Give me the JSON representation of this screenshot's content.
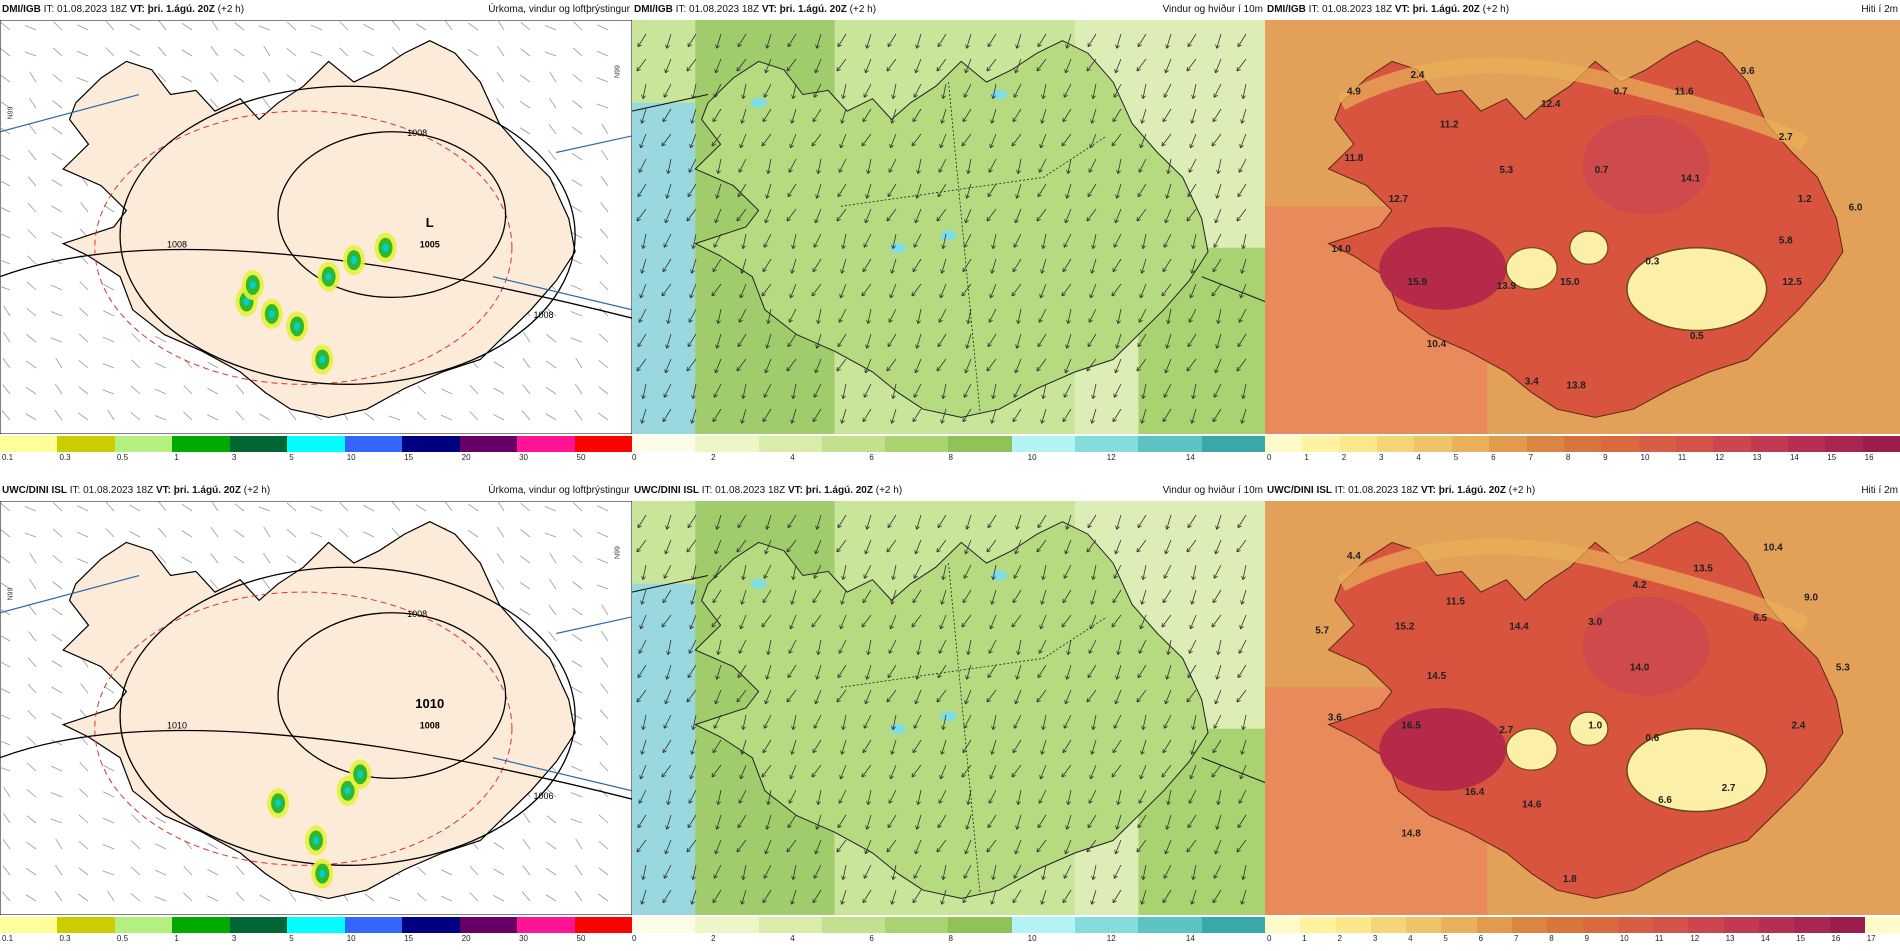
{
  "run_info": {
    "it_label": "IT: 01.08.2023 18Z",
    "vt_prefix": "VT:",
    "vt_value": "þri. 1.ágú. 20Z",
    "lead": "(+2 h)"
  },
  "rows": [
    {
      "model": "DMI/IGB",
      "panels": [
        {
          "title": "Úrkoma, vindur og loftþrýstingur",
          "isobars": [
            "1008",
            "1008",
            "1008",
            "1005",
            "L"
          ]
        },
        {
          "title": "Vindur og hviður í 10m"
        },
        {
          "title": "Hiti í 2m",
          "temps": [
            "4.9",
            "2.4",
            "11.2",
            "12.4",
            "0.7",
            "11.6",
            "9.6",
            "11.8",
            "5.3",
            "0.7",
            "2.7",
            "14.1",
            "1.2",
            "6.0",
            "12.7",
            "5.8",
            "14.0",
            "0.3",
            "12.5",
            "15.9",
            "13.9",
            "15.0",
            "10.4",
            "0.5",
            "3.4",
            "13.8"
          ]
        }
      ]
    },
    {
      "model": "UWC/DINI ISL",
      "panels": [
        {
          "title": "Úrkoma, vindur og loftþrýstingur",
          "isobars": [
            "1010",
            "1008",
            "1006",
            "1008",
            "1010"
          ]
        },
        {
          "title": "Vindur og hviður í 10m"
        },
        {
          "title": "Hiti í 2m",
          "temps": [
            "4.4",
            "11.5",
            "13.5",
            "10.4",
            "4.2",
            "5.7",
            "15.2",
            "14.4",
            "3.0",
            "9.0",
            "6.5",
            "14.5",
            "14.0",
            "5.3",
            "3.6",
            "16.5",
            "2.7",
            "1.0",
            "0.6",
            "2.4",
            "16.4",
            "14.6",
            "6.6",
            "2.7",
            "14.8",
            "1.8"
          ]
        }
      ]
    }
  ],
  "legends": {
    "precip_ticks": [
      "0.1",
      "0.3",
      "0.5",
      "1",
      "3",
      "5",
      "10",
      "15",
      "20",
      "30",
      "50"
    ],
    "precip_colors": [
      "#ffff99",
      "#cccc00",
      "#b3f080",
      "#00aa00",
      "#006633",
      "#00ffff",
      "#3366ff",
      "#000080",
      "#660066",
      "#ff1493",
      "#ff0000"
    ],
    "wind_ticks_top": [
      "0",
      "2",
      "4",
      "6",
      "8",
      "10",
      "12",
      "14"
    ],
    "wind_colors": [
      "#fbfde8",
      "#eef6c8",
      "#d9ecaa",
      "#c3e08e",
      "#a9d270",
      "#8fc257",
      "#b3f3f3",
      "#84dcdc",
      "#5cc3c3",
      "#3aa8a8"
    ],
    "temp_ticks_top": [
      "0",
      "1",
      "2",
      "3",
      "4",
      "5",
      "6",
      "7",
      "8",
      "9",
      "10",
      "11",
      "12",
      "13",
      "14",
      "15",
      "16"
    ],
    "temp_ticks_bottom": [
      "0",
      "1",
      "2",
      "3",
      "4",
      "5",
      "6",
      "7",
      "8",
      "9",
      "10",
      "11",
      "12",
      "13",
      "14",
      "15",
      "16",
      "17"
    ],
    "temp_colors": [
      "#fffbc8",
      "#fff3a0",
      "#fce78a",
      "#f5d676",
      "#efc468",
      "#e9b15a",
      "#e29a4d",
      "#db8542",
      "#d8753c",
      "#d86a3e",
      "#d65e44",
      "#d3524a",
      "#cc4650",
      "#c23a52",
      "#b62f52",
      "#a82650",
      "#9a1d4c"
    ],
    "lat_label": "N99"
  },
  "colors": {
    "land_precip": "#fcebd9",
    "sea_precip": "#ffffff",
    "isobar": "#000000",
    "wind_sea": "#9ad8df",
    "temp_bg": "#e3a058"
  }
}
